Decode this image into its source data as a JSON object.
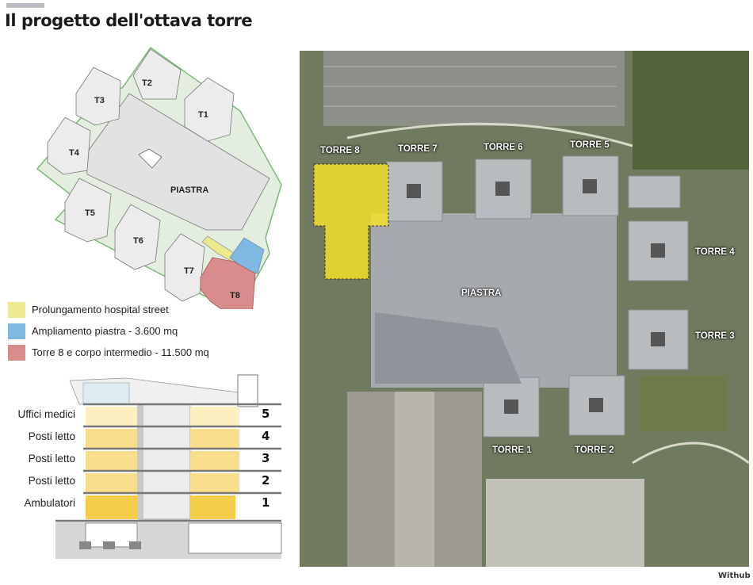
{
  "title": "Il progetto dell'ottava torre",
  "axonometric": {
    "towers": [
      "T1",
      "T2",
      "T3",
      "T4",
      "T5",
      "T6",
      "T7",
      "T8"
    ],
    "center_label": "PIASTRA"
  },
  "legend": [
    {
      "label": "Prolungamento hospital street",
      "color": "#ece98f"
    },
    {
      "label": "Ampliamento piastra - 3.600 mq",
      "color": "#7fb9e3"
    },
    {
      "label": "Torre 8 e corpo intermedio - 11.500 mq",
      "color": "#d98c8c"
    }
  ],
  "section": {
    "floors": [
      {
        "number": "5",
        "label": "Uffici medici"
      },
      {
        "number": "4",
        "label": "Posti letto"
      },
      {
        "number": "3",
        "label": "Posti letto"
      },
      {
        "number": "2",
        "label": "Posti letto"
      },
      {
        "number": "1",
        "label": "Ambulatori"
      }
    ]
  },
  "map": {
    "labels": {
      "t8": "TORRE 8",
      "t7": "TORRE 7",
      "t6": "TORRE 6",
      "t5": "TORRE 5",
      "t4": "TORRE 4",
      "t3": "TORRE 3",
      "t1": "TORRE 1",
      "t2": "TORRE 2",
      "piastra": "PIASTRA"
    },
    "highlight_color": "#f5e12a"
  },
  "credit": "Withub"
}
